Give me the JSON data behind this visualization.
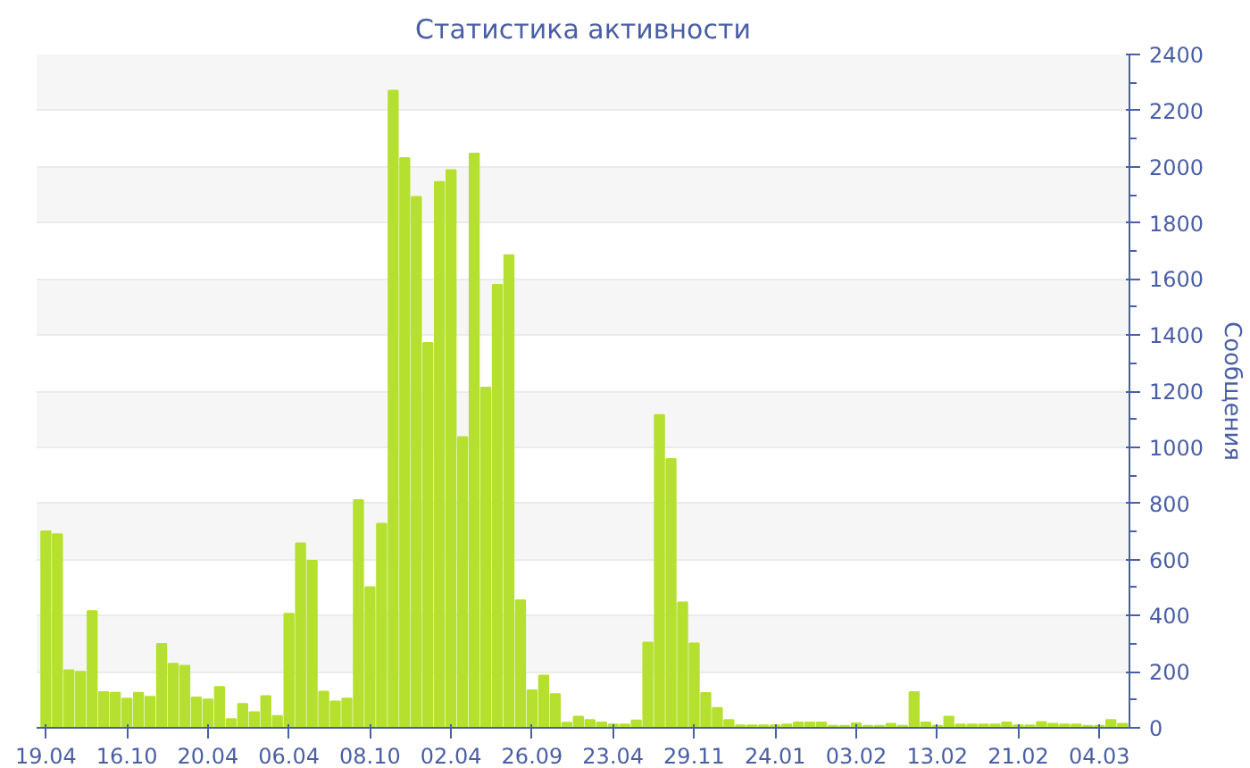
{
  "chart_data": {
    "type": "bar",
    "title": "Статистика активности",
    "ylabel": "Сообщения",
    "categories": [
      "19.04",
      null,
      null,
      null,
      null,
      null,
      null,
      "16.10",
      null,
      null,
      null,
      null,
      null,
      null,
      "20.04",
      null,
      null,
      null,
      null,
      null,
      null,
      "06.04",
      null,
      null,
      null,
      null,
      null,
      null,
      "08.10",
      null,
      null,
      null,
      null,
      null,
      null,
      "02.04",
      null,
      null,
      null,
      null,
      null,
      null,
      "26.09",
      null,
      null,
      null,
      null,
      null,
      null,
      "23.04",
      null,
      null,
      null,
      null,
      null,
      null,
      "29.11",
      null,
      null,
      null,
      null,
      null,
      null,
      "24.01",
      null,
      null,
      null,
      null,
      null,
      null,
      "03.02",
      null,
      null,
      null,
      null,
      null,
      null,
      "13.02",
      null,
      null,
      null,
      null,
      null,
      null,
      "21.02",
      null,
      null,
      null,
      null,
      null,
      null,
      "04.03",
      null,
      null
    ],
    "values": [
      700,
      690,
      205,
      200,
      416,
      127,
      125,
      104,
      125,
      111,
      299,
      228,
      221,
      108,
      101,
      146,
      31,
      85,
      56,
      113,
      42,
      407,
      657,
      595,
      129,
      94,
      104,
      812,
      501,
      727,
      2271,
      2031,
      1892,
      1372,
      1946,
      1988,
      1036,
      2047,
      1213,
      1579,
      1685,
      454,
      134,
      186,
      120,
      18,
      40,
      28,
      19,
      12,
      12,
      26,
      304,
      1115,
      958,
      447,
      301,
      124,
      71,
      28,
      9,
      9,
      9,
      9,
      12,
      19,
      19,
      19,
      7,
      7,
      16,
      7,
      7,
      14,
      7,
      127,
      19,
      7,
      40,
      12,
      12,
      12,
      12,
      19,
      9,
      9,
      21,
      14,
      12,
      12,
      7,
      7,
      28,
      14
    ],
    "color": "#b5e02f",
    "ylim": [
      0,
      2400
    ],
    "yticks": [
      0,
      200,
      400,
      600,
      800,
      1000,
      1200,
      1400,
      1600,
      1800,
      2000,
      2200,
      2400
    ],
    "grid": "y"
  }
}
